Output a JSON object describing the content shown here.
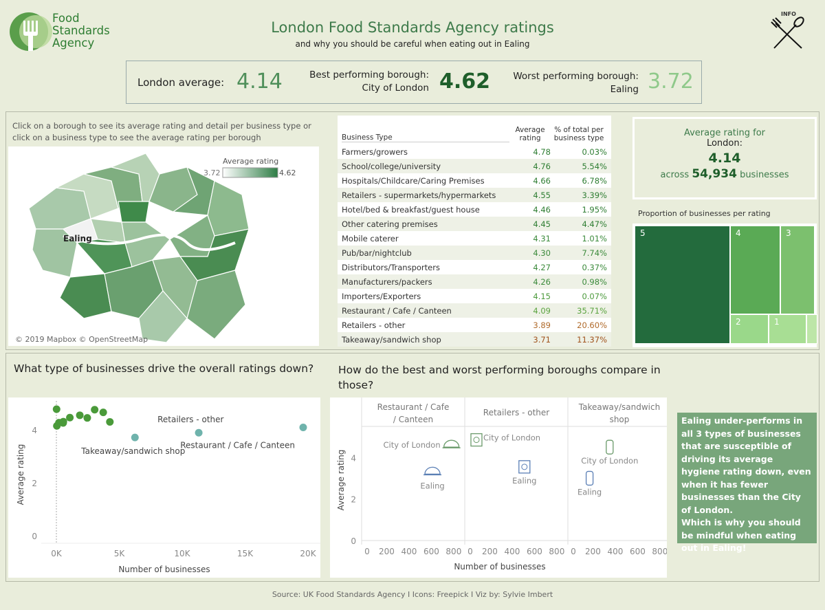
{
  "header": {
    "logo_text": [
      "Food",
      "Standards",
      "Agency"
    ],
    "title": "London Food Standards Agency ratings",
    "subtitle": "and why you should be careful when eating out in Ealing",
    "info_label": "INFO"
  },
  "kpi": {
    "london_label": "London average:",
    "london_value": "4.14",
    "best_label": "Best performing borough:",
    "best_name": "City of London",
    "best_value": "4.62",
    "worst_label": "Worst performing borough:",
    "worst_name": "Ealing",
    "worst_value": "3.72"
  },
  "map": {
    "instruction": "Click on a borough to see its average rating and detail per business type or click on a business type to see the average rating per borough",
    "legend_title": "Average rating",
    "legend_min": "3.72",
    "legend_max": "4.62",
    "highlight": "Ealing",
    "credit": "© 2019 Mapbox © OpenStreetMap"
  },
  "table": {
    "headers": [
      "Business Type",
      "Average rating",
      "% of total per business type"
    ],
    "rows": [
      {
        "type": "Farmers/growers",
        "rating": "4.78",
        "pct": "0.03%",
        "color": "#2e7d32"
      },
      {
        "type": "School/college/university",
        "rating": "4.76",
        "pct": "5.54%",
        "color": "#2e7d32"
      },
      {
        "type": "Hospitals/Childcare/Caring Premises",
        "rating": "4.66",
        "pct": "6.78%",
        "color": "#2e7d32"
      },
      {
        "type": "Retailers - supermarkets/hypermarkets",
        "rating": "4.55",
        "pct": "3.39%",
        "color": "#2e7d32"
      },
      {
        "type": "Hotel/bed & breakfast/guest house",
        "rating": "4.46",
        "pct": "1.95%",
        "color": "#2e7d32"
      },
      {
        "type": "Other catering premises",
        "rating": "4.45",
        "pct": "4.47%",
        "color": "#2e7d32"
      },
      {
        "type": "Mobile caterer",
        "rating": "4.31",
        "pct": "1.01%",
        "color": "#3b8a3b"
      },
      {
        "type": "Pub/bar/nightclub",
        "rating": "4.30",
        "pct": "7.74%",
        "color": "#3b8a3b"
      },
      {
        "type": "Distributors/Transporters",
        "rating": "4.27",
        "pct": "0.37%",
        "color": "#3b8a3b"
      },
      {
        "type": "Manufacturers/packers",
        "rating": "4.26",
        "pct": "0.98%",
        "color": "#3b8a3b"
      },
      {
        "type": "Importers/Exporters",
        "rating": "4.15",
        "pct": "0.07%",
        "color": "#4c9a3c"
      },
      {
        "type": "Restaurant / Cafe / Canteen",
        "rating": "4.09",
        "pct": "35.71%",
        "color": "#5aa33f"
      },
      {
        "type": "Retailers - other",
        "rating": "3.89",
        "pct": "20.60%",
        "color": "#b06a2a"
      },
      {
        "type": "Takeaway/sandwich shop",
        "rating": "3.71",
        "pct": "11.37%",
        "color": "#a0521c"
      }
    ]
  },
  "summary": {
    "line1": "Average rating for",
    "place": "London:",
    "value": "4.14",
    "across": "across",
    "count": "54,934",
    "businesses": "businesses"
  },
  "treemap": {
    "title": "Proportion of businesses per rating",
    "labels": [
      "5",
      "4",
      "3",
      "2",
      "1"
    ]
  },
  "scatter": {
    "question": "What type of businesses drive the overall ratings down?",
    "chart_data": {
      "type": "scatter",
      "xlabel": "Number of businesses",
      "ylabel": "Average rating",
      "xticks": [
        "0K",
        "5K",
        "10K",
        "15K",
        "20K"
      ],
      "yticks": [
        "0",
        "2",
        "4"
      ],
      "xlim": [
        -1000,
        20500
      ],
      "ylim": [
        0,
        5
      ],
      "points": [
        {
          "x": 16,
          "y": 4.78
        },
        {
          "x": 3043,
          "y": 4.76
        },
        {
          "x": 3725,
          "y": 4.66
        },
        {
          "x": 1862,
          "y": 4.55
        },
        {
          "x": 1071,
          "y": 4.46
        },
        {
          "x": 2456,
          "y": 4.45
        },
        {
          "x": 555,
          "y": 4.31
        },
        {
          "x": 4252,
          "y": 4.3
        },
        {
          "x": 203,
          "y": 4.27
        },
        {
          "x": 538,
          "y": 4.26
        },
        {
          "x": 38,
          "y": 4.15
        },
        {
          "x": 19617,
          "y": 4.09,
          "label": "Restaurant / Cafe / Canteen",
          "highlight": true
        },
        {
          "x": 11316,
          "y": 3.89,
          "label": "Retailers - other",
          "highlight": true
        },
        {
          "x": 6246,
          "y": 3.71,
          "label": "Takeaway/sandwich shop",
          "highlight": true
        }
      ],
      "colors": {
        "normal": "#4a9a3a",
        "highlight": "#6fb3ac"
      }
    }
  },
  "compare": {
    "question": "How do the best and worst performing boroughs compare in those?",
    "chart_data": {
      "type": "scatter",
      "xlabel": "Number of businesses",
      "ylabel": "Average rating",
      "xticks": [
        "0",
        "200",
        "400",
        "600",
        "800"
      ],
      "yticks": [
        "0",
        "2",
        "4"
      ],
      "xlim": [
        0,
        850
      ],
      "ylim": [
        0,
        5.5
      ],
      "panels": [
        {
          "title": "Restaurant / Cafe / Canteen",
          "icon": "cloche-icon",
          "points": [
            {
              "name": "City of London",
              "x": 780,
              "y": 4.6
            },
            {
              "name": "Ealing",
              "x": 610,
              "y": 3.3
            }
          ]
        },
        {
          "title": "Retailers - other",
          "icon": "shop-bag-icon",
          "points": [
            {
              "name": "City of London",
              "x": 80,
              "y": 4.85
            },
            {
              "name": "Ealing",
              "x": 510,
              "y": 3.55
            }
          ]
        },
        {
          "title": "Takeaway/sandwich shop",
          "icon": "wrap-icon",
          "points": [
            {
              "name": "City of London",
              "x": 350,
              "y": 4.5
            },
            {
              "name": "Ealing",
              "x": 170,
              "y": 3.0
            }
          ]
        }
      ],
      "colors": {
        "City of London": "#6a9a6a",
        "Ealing": "#5a7fb5"
      }
    }
  },
  "note": "Ealing under-performs in all 3 types of businesses that are susceptible of driving its average hygiene rating down, even when it has fewer businesses than the City of London.\nWhich is why you should be mindful when eating out in Ealing!",
  "footer": "Source: UK Food Standards Agency I Icons: Freepick I Viz by: Sylvie Imbert"
}
